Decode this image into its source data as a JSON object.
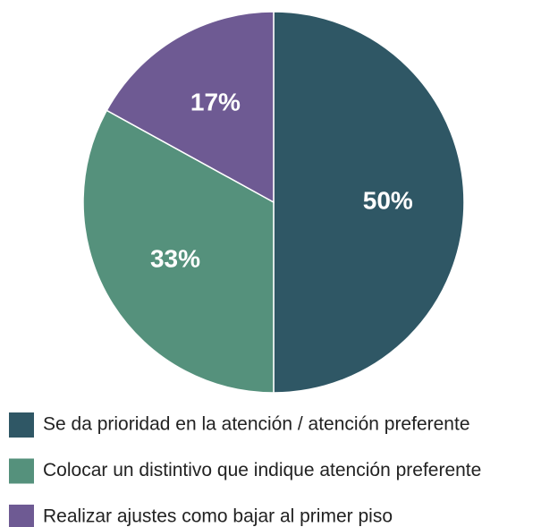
{
  "chart_data": {
    "type": "pie",
    "categories": [
      "Se da prioridad en la atención / atención preferente",
      "Colocar un distintivo que indique atención preferente",
      "Realizar ajustes como bajar al primer piso"
    ],
    "values": [
      50,
      33,
      17
    ],
    "value_labels": [
      "50%",
      "33%",
      "17%"
    ],
    "colors": [
      "#2f5765",
      "#55917c",
      "#6e5a93"
    ],
    "legend": "bottom"
  }
}
